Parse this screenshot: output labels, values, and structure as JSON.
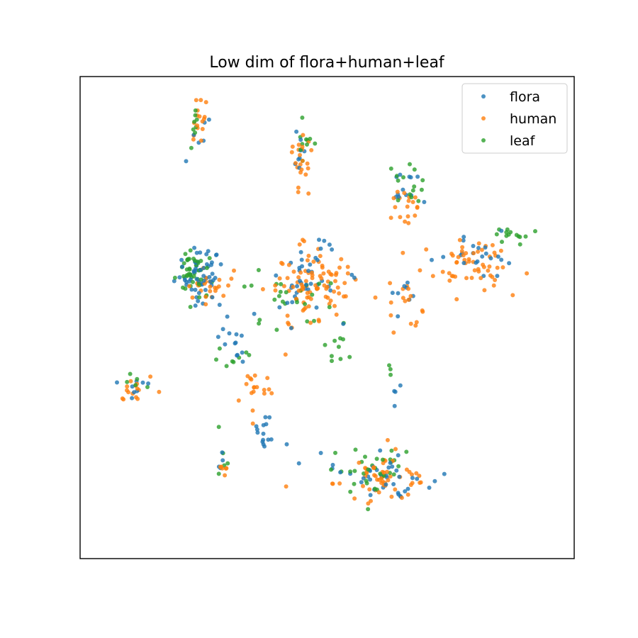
{
  "chart_data": {
    "type": "scatter",
    "title": "Low dim of flora+human+leaf",
    "xlabel": "",
    "ylabel": "",
    "xlim": [
      0,
      100
    ],
    "ylim": [
      0,
      100
    ],
    "grid": false,
    "ticks_visible": false,
    "legend_position": "top-right",
    "series": [
      {
        "name": "flora",
        "color": "#1f77b4",
        "clusters": [
          {
            "cx": 24.0,
            "cy": 59.0,
            "sx": 4.0,
            "sy": 4.5,
            "n": 55
          },
          {
            "cx": 46.0,
            "cy": 58.0,
            "sx": 6.0,
            "sy": 7.0,
            "n": 40
          },
          {
            "cx": 31.0,
            "cy": 45.0,
            "sx": 3.0,
            "sy": 5.0,
            "n": 15
          },
          {
            "cx": 37.5,
            "cy": 27.0,
            "sx": 2.5,
            "sy": 5.0,
            "n": 15
          },
          {
            "cx": 61.0,
            "cy": 17.0,
            "sx": 8.0,
            "sy": 4.0,
            "n": 40
          },
          {
            "cx": 81.0,
            "cy": 63.0,
            "sx": 7.0,
            "sy": 3.0,
            "n": 22
          },
          {
            "cx": 66.5,
            "cy": 77.0,
            "sx": 3.0,
            "sy": 4.0,
            "n": 12
          },
          {
            "cx": 44.0,
            "cy": 84.0,
            "sx": 2.0,
            "sy": 5.0,
            "n": 8
          },
          {
            "cx": 24.5,
            "cy": 88.0,
            "sx": 1.5,
            "sy": 6.0,
            "n": 6
          },
          {
            "cx": 11.0,
            "cy": 36.0,
            "sx": 3.0,
            "sy": 2.0,
            "n": 8
          },
          {
            "cx": 65.0,
            "cy": 55.0,
            "sx": 3.0,
            "sy": 3.0,
            "n": 8
          },
          {
            "cx": 63.5,
            "cy": 33.0,
            "sx": 1.0,
            "sy": 3.0,
            "n": 4
          },
          {
            "cx": 28.0,
            "cy": 22.0,
            "sx": 1.0,
            "sy": 3.0,
            "n": 4
          }
        ]
      },
      {
        "name": "human",
        "color": "#ff7f0e",
        "clusters": [
          {
            "cx": 46.0,
            "cy": 56.0,
            "sx": 7.0,
            "sy": 8.0,
            "n": 95
          },
          {
            "cx": 79.0,
            "cy": 61.0,
            "sx": 8.0,
            "sy": 4.0,
            "n": 55
          },
          {
            "cx": 61.0,
            "cy": 17.0,
            "sx": 8.0,
            "sy": 4.0,
            "n": 55
          },
          {
            "cx": 25.0,
            "cy": 57.0,
            "sx": 4.0,
            "sy": 4.0,
            "n": 25
          },
          {
            "cx": 44.5,
            "cy": 82.0,
            "sx": 2.5,
            "sy": 5.0,
            "n": 22
          },
          {
            "cx": 24.0,
            "cy": 90.0,
            "sx": 1.5,
            "sy": 5.0,
            "n": 16
          },
          {
            "cx": 66.0,
            "cy": 73.0,
            "sx": 3.0,
            "sy": 4.0,
            "n": 18
          },
          {
            "cx": 11.0,
            "cy": 35.0,
            "sx": 3.0,
            "sy": 2.5,
            "n": 15
          },
          {
            "cx": 35.0,
            "cy": 35.0,
            "sx": 3.0,
            "sy": 4.0,
            "n": 18
          },
          {
            "cx": 29.0,
            "cy": 19.5,
            "sx": 1.0,
            "sy": 2.0,
            "n": 6
          },
          {
            "cx": 65.5,
            "cy": 55.0,
            "sx": 3.0,
            "sy": 4.0,
            "n": 16
          }
        ]
      },
      {
        "name": "leaf",
        "color": "#2ca02c",
        "clusters": [
          {
            "cx": 23.0,
            "cy": 59.0,
            "sx": 3.5,
            "sy": 4.0,
            "n": 45
          },
          {
            "cx": 42.0,
            "cy": 54.0,
            "sx": 8.0,
            "sy": 6.0,
            "n": 25
          },
          {
            "cx": 67.0,
            "cy": 78.0,
            "sx": 3.0,
            "sy": 4.0,
            "n": 14
          },
          {
            "cx": 87.0,
            "cy": 67.0,
            "sx": 4.0,
            "sy": 1.5,
            "n": 14
          },
          {
            "cx": 59.0,
            "cy": 18.0,
            "sx": 8.0,
            "sy": 4.0,
            "n": 32
          },
          {
            "cx": 45.5,
            "cy": 86.0,
            "sx": 1.5,
            "sy": 4.0,
            "n": 10
          },
          {
            "cx": 23.5,
            "cy": 91.0,
            "sx": 1.5,
            "sy": 4.0,
            "n": 8
          },
          {
            "cx": 12.0,
            "cy": 37.0,
            "sx": 3.0,
            "sy": 2.0,
            "n": 5
          },
          {
            "cx": 30.5,
            "cy": 41.0,
            "sx": 3.0,
            "sy": 4.0,
            "n": 8
          },
          {
            "cx": 52.0,
            "cy": 45.0,
            "sx": 3.0,
            "sy": 3.0,
            "n": 10
          },
          {
            "cx": 63.5,
            "cy": 38.5,
            "sx": 1.0,
            "sy": 1.5,
            "n": 3
          },
          {
            "cx": 29.0,
            "cy": 21.0,
            "sx": 1.0,
            "sy": 3.0,
            "n": 5
          }
        ]
      }
    ]
  }
}
